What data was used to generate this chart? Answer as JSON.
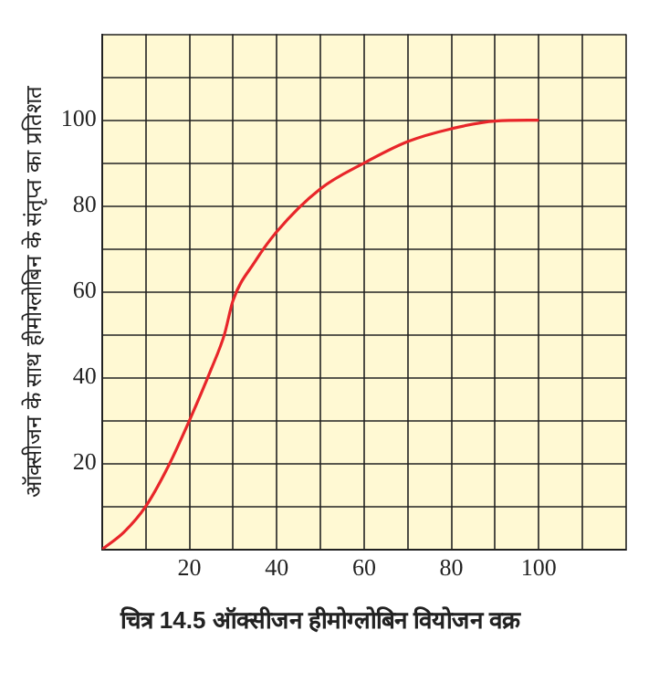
{
  "chart_data": {
    "type": "line",
    "title": "चित्र 14.5 ऑक्सीजन हीमोग्लोबिन वियोजन वक्र",
    "ylabel": "ऑक्सीजन के साथ हीमोग्लोबिन के संतृप्त का प्रतिशत",
    "x": [
      0,
      5,
      10,
      15,
      20,
      25,
      28,
      30,
      35,
      40,
      50,
      60,
      70,
      80,
      90,
      100
    ],
    "series": [
      {
        "color": "#e8262a",
        "values": [
          0,
          4,
          10,
          19,
          30,
          42,
          50,
          58,
          67,
          74,
          84,
          90,
          95,
          98,
          99.8,
          100
        ]
      }
    ],
    "xlim": [
      0,
      120
    ],
    "ylim": [
      0,
      120
    ],
    "xticks": [
      {
        "value": 0,
        "label": null
      },
      {
        "value": 10,
        "label": null
      },
      20,
      {
        "value": 30,
        "label": null
      },
      40,
      {
        "value": 50,
        "label": null
      },
      60,
      {
        "value": 70,
        "label": null
      },
      80,
      {
        "value": 90,
        "label": null
      },
      100,
      {
        "value": 110,
        "label": null
      },
      {
        "value": 120,
        "label": null
      }
    ],
    "yticks": [
      {
        "value": 0,
        "label": null
      },
      {
        "value": 10,
        "label": null
      },
      20,
      {
        "value": 30,
        "label": null
      },
      40,
      {
        "value": 50,
        "label": null
      },
      60,
      {
        "value": 70,
        "label": null
      },
      80,
      {
        "value": 90,
        "label": null
      },
      100,
      {
        "value": 110,
        "label": null
      },
      {
        "value": 120,
        "label": null
      }
    ],
    "grid": true,
    "legend": false,
    "marker": "none",
    "line_style": "solid"
  }
}
